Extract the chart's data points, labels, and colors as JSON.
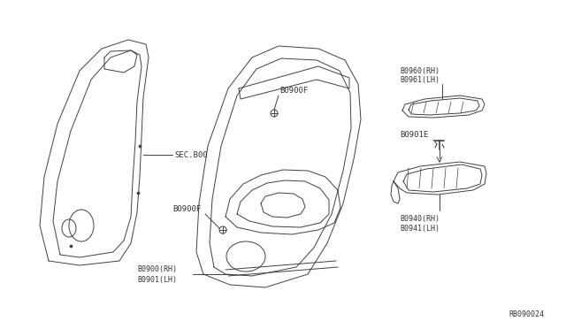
{
  "background_color": "#ffffff",
  "line_color": "#404040",
  "text_color": "#333333",
  "diagram_id": "RB090024",
  "labels": {
    "sec800": "SEC.B00",
    "80900F_top": "B0900F",
    "80900F_bot": "B0900F",
    "80900_rh": "B0900(RH)",
    "80901_lh": "B0901(LH)",
    "80960_rh": "B0960(RH)",
    "80961_lh": "B0961(LH)",
    "80901E": "B0901E",
    "80940_rh": "B0940(RH)",
    "80941_lh": "B0941(LH)"
  },
  "figsize": [
    6.4,
    3.72
  ],
  "dpi": 100
}
